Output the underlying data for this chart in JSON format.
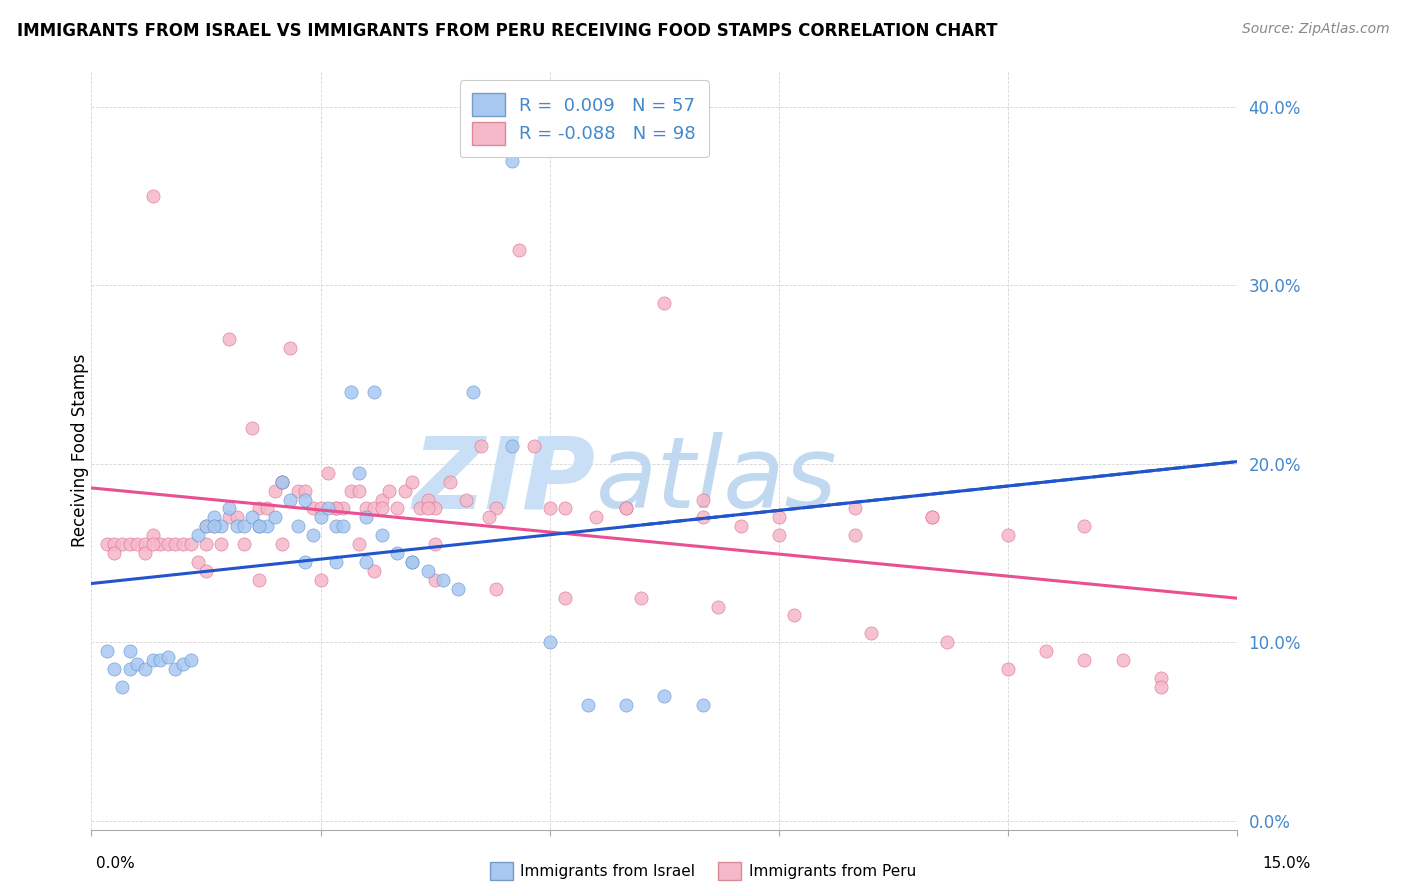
{
  "title": "IMMIGRANTS FROM ISRAEL VS IMMIGRANTS FROM PERU RECEIVING FOOD STAMPS CORRELATION CHART",
  "source": "Source: ZipAtlas.com",
  "ylabel": "Receiving Food Stamps",
  "xlim": [
    0.0,
    0.15
  ],
  "ylim": [
    -0.005,
    0.42
  ],
  "yticks": [
    0.0,
    0.1,
    0.2,
    0.3,
    0.4
  ],
  "ytick_labels": [
    "0.0%",
    "10.0%",
    "20.0%",
    "30.0%",
    "40.0%"
  ],
  "legend_r1": "R =  0.009",
  "legend_n1": "N = 57",
  "legend_r2": "R = -0.088",
  "legend_n2": "N = 98",
  "color_israel": "#A8C8F0",
  "color_peru": "#F5B8C8",
  "trendline_israel_color": "#2255CC",
  "trendline_peru_color": "#E85090",
  "watermark_zip_color": "#C8DFF5",
  "watermark_atlas_color": "#C0D8F0",
  "israel_x": [
    0.002,
    0.003,
    0.004,
    0.005,
    0.005,
    0.006,
    0.007,
    0.008,
    0.009,
    0.01,
    0.011,
    0.012,
    0.013,
    0.014,
    0.015,
    0.016,
    0.017,
    0.018,
    0.019,
    0.02,
    0.021,
    0.022,
    0.023,
    0.024,
    0.025,
    0.026,
    0.027,
    0.028,
    0.029,
    0.03,
    0.031,
    0.032,
    0.033,
    0.034,
    0.035,
    0.036,
    0.037,
    0.038,
    0.04,
    0.042,
    0.044,
    0.046,
    0.048,
    0.05,
    0.055,
    0.06,
    0.065,
    0.07,
    0.075,
    0.08,
    0.032,
    0.016,
    0.022,
    0.028,
    0.036,
    0.042,
    0.055
  ],
  "israel_y": [
    0.095,
    0.085,
    0.075,
    0.095,
    0.085,
    0.088,
    0.085,
    0.09,
    0.09,
    0.092,
    0.085,
    0.088,
    0.09,
    0.16,
    0.165,
    0.17,
    0.165,
    0.175,
    0.165,
    0.165,
    0.17,
    0.165,
    0.165,
    0.17,
    0.19,
    0.18,
    0.165,
    0.18,
    0.16,
    0.17,
    0.175,
    0.165,
    0.165,
    0.24,
    0.195,
    0.17,
    0.24,
    0.16,
    0.15,
    0.145,
    0.14,
    0.135,
    0.13,
    0.24,
    0.37,
    0.1,
    0.065,
    0.065,
    0.07,
    0.065,
    0.145,
    0.165,
    0.165,
    0.145,
    0.145,
    0.145,
    0.21
  ],
  "peru_x": [
    0.002,
    0.003,
    0.004,
    0.005,
    0.006,
    0.007,
    0.008,
    0.009,
    0.01,
    0.011,
    0.012,
    0.013,
    0.014,
    0.015,
    0.016,
    0.017,
    0.018,
    0.019,
    0.02,
    0.021,
    0.022,
    0.023,
    0.024,
    0.025,
    0.026,
    0.027,
    0.028,
    0.029,
    0.03,
    0.031,
    0.032,
    0.033,
    0.034,
    0.035,
    0.036,
    0.037,
    0.038,
    0.039,
    0.04,
    0.041,
    0.042,
    0.043,
    0.044,
    0.045,
    0.047,
    0.049,
    0.051,
    0.053,
    0.056,
    0.058,
    0.062,
    0.066,
    0.07,
    0.075,
    0.08,
    0.085,
    0.09,
    0.1,
    0.11,
    0.12,
    0.13,
    0.14,
    0.008,
    0.018,
    0.025,
    0.032,
    0.038,
    0.044,
    0.052,
    0.06,
    0.07,
    0.08,
    0.09,
    0.1,
    0.11,
    0.12,
    0.13,
    0.14,
    0.003,
    0.007,
    0.015,
    0.022,
    0.03,
    0.037,
    0.045,
    0.053,
    0.062,
    0.072,
    0.082,
    0.092,
    0.102,
    0.112,
    0.125,
    0.135,
    0.008,
    0.015,
    0.025,
    0.035,
    0.045
  ],
  "peru_y": [
    0.155,
    0.155,
    0.155,
    0.155,
    0.155,
    0.155,
    0.16,
    0.155,
    0.155,
    0.155,
    0.155,
    0.155,
    0.145,
    0.165,
    0.165,
    0.155,
    0.17,
    0.17,
    0.155,
    0.22,
    0.175,
    0.175,
    0.185,
    0.19,
    0.265,
    0.185,
    0.185,
    0.175,
    0.175,
    0.195,
    0.175,
    0.175,
    0.185,
    0.185,
    0.175,
    0.175,
    0.18,
    0.185,
    0.175,
    0.185,
    0.19,
    0.175,
    0.18,
    0.175,
    0.19,
    0.18,
    0.21,
    0.175,
    0.32,
    0.21,
    0.175,
    0.17,
    0.175,
    0.29,
    0.17,
    0.165,
    0.16,
    0.16,
    0.17,
    0.085,
    0.165,
    0.08,
    0.35,
    0.27,
    0.19,
    0.175,
    0.175,
    0.175,
    0.17,
    0.175,
    0.175,
    0.18,
    0.17,
    0.175,
    0.17,
    0.16,
    0.09,
    0.075,
    0.15,
    0.15,
    0.14,
    0.135,
    0.135,
    0.14,
    0.135,
    0.13,
    0.125,
    0.125,
    0.12,
    0.115,
    0.105,
    0.1,
    0.095,
    0.09,
    0.155,
    0.155,
    0.155,
    0.155,
    0.155
  ]
}
